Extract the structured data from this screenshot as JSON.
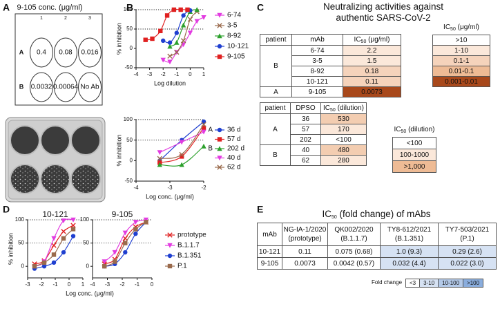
{
  "panel_labels": [
    "A",
    "B",
    "C",
    "D",
    "E"
  ],
  "panel_a": {
    "title": "9-105 conc. (μg/ml)",
    "columns": [
      "1",
      "2",
      "3"
    ],
    "rows": [
      {
        "label": "A",
        "wells": [
          "0.4",
          "0.08",
          "0.016"
        ]
      },
      {
        "label": "B",
        "wells": [
          "0.0032",
          "0.00064",
          "No Ab"
        ]
      }
    ]
  },
  "chart_data": [
    {
      "type": "line",
      "x_label": "Log dilution",
      "y_label": "% inhibition",
      "xlim": [
        -4,
        1
      ],
      "xticks": [
        -4,
        -3,
        -2,
        -1,
        0,
        1
      ],
      "ylim": [
        -50,
        100
      ],
      "yticks": [
        -50,
        0,
        50,
        100
      ],
      "hlines": [
        50,
        100
      ],
      "legend": "right",
      "series": [
        {
          "name": "6-74",
          "color": "#e23be0",
          "marker": "tri-down",
          "x": [
            -2,
            -1.5,
            -1,
            -0.5,
            0,
            0.5,
            1
          ],
          "values": [
            -30,
            -35,
            -10,
            10,
            40,
            70,
            80
          ]
        },
        {
          "name": "3-5",
          "color": "#9a6a4c",
          "marker": "x",
          "x": [
            -1.5,
            -1,
            -0.5,
            0,
            0.5
          ],
          "values": [
            -20,
            -10,
            20,
            75,
            95
          ]
        },
        {
          "name": "8-92",
          "color": "#2ca02c",
          "marker": "triangle",
          "x": [
            -1.5,
            -1,
            -0.5,
            0,
            0.5
          ],
          "values": [
            5,
            15,
            60,
            95,
            100
          ]
        },
        {
          "name": "10-121",
          "color": "#1f3fd0",
          "marker": "circle",
          "x": [
            -2,
            -1.5,
            -1,
            -0.5,
            0
          ],
          "values": [
            20,
            15,
            40,
            85,
            98
          ]
        },
        {
          "name": "9-105",
          "color": "#e02020",
          "marker": "square",
          "x": [
            -3.3,
            -2.8,
            -2.2,
            -1.7,
            -1.2,
            -0.7,
            -0.2
          ],
          "values": [
            22,
            25,
            45,
            85,
            100,
            100,
            100
          ]
        }
      ]
    },
    {
      "type": "line",
      "x_label": "Log conc. (μg/ml)",
      "y_label": "% inhibition",
      "xlim": [
        -4,
        -2
      ],
      "xticks": [
        -4,
        -3,
        -2
      ],
      "ylim": [
        -50,
        100
      ],
      "yticks": [
        -50,
        0,
        50,
        100
      ],
      "hlines": [
        50,
        100
      ],
      "legend": "right",
      "series": [
        {
          "name": "36 d",
          "group": "A",
          "color": "#1f3fd0",
          "marker": "circle",
          "x": [
            -3.3,
            -2.65,
            -2
          ],
          "values": [
            0,
            50,
            95
          ]
        },
        {
          "name": "57 d",
          "color": "#e02020",
          "marker": "square",
          "x": [
            -3.3,
            -2.65,
            -2
          ],
          "values": [
            -5,
            10,
            80
          ]
        },
        {
          "name": "202 d",
          "group": "B",
          "color": "#2ca02c",
          "marker": "triangle",
          "x": [
            -3.3,
            -2.65,
            -2
          ],
          "values": [
            -10,
            -10,
            35
          ]
        },
        {
          "name": "40 d",
          "color": "#e23be0",
          "marker": "tri-down",
          "x": [
            -3.3,
            -2.65,
            -2
          ],
          "values": [
            20,
            45,
            70
          ]
        },
        {
          "name": "62 d",
          "color": "#9a6a4c",
          "marker": "x",
          "x": [
            -3.3,
            -2.65,
            -2
          ],
          "values": [
            5,
            15,
            88
          ]
        }
      ]
    },
    {
      "type": "line",
      "title": "10-121",
      "y_label": "% inhibition",
      "xlim": [
        -3,
        1
      ],
      "xticks": [
        -3,
        -2,
        -1,
        0,
        1
      ],
      "ylim": [
        -25,
        100
      ],
      "yticks": [
        0,
        50,
        100
      ],
      "hlines": [
        50,
        100
      ],
      "series": [
        {
          "color": "#e02020",
          "marker": "x",
          "x": [
            -2.5,
            -1.8,
            -1.1,
            -0.4,
            0.3
          ],
          "values": [
            5,
            12,
            45,
            75,
            88
          ]
        },
        {
          "color": "#e23be0",
          "marker": "tri-down",
          "x": [
            -2.5,
            -1.8,
            -1.1,
            -0.4,
            0.3
          ],
          "values": [
            0,
            10,
            60,
            98,
            100
          ]
        },
        {
          "color": "#1f3fd0",
          "marker": "circle",
          "x": [
            -2.5,
            -1.8,
            -1.1,
            -0.4,
            0.3
          ],
          "values": [
            -5,
            0,
            8,
            30,
            65
          ]
        },
        {
          "color": "#9a6a4c",
          "marker": "square",
          "x": [
            -2.5,
            -1.8,
            -1.1,
            -0.4,
            0.3
          ],
          "values": [
            0,
            8,
            25,
            60,
            80
          ]
        }
      ]
    },
    {
      "type": "line",
      "title": "9-105",
      "x_label": "Log conc. (μg/ml)",
      "xlim": [
        -4,
        0
      ],
      "xticks": [
        -4,
        -3,
        -2,
        -1,
        0
      ],
      "ylim": [
        -25,
        100
      ],
      "yticks": [
        0,
        50,
        100
      ],
      "hlines": [
        50,
        100
      ],
      "legend": "right",
      "series": [
        {
          "name": "prototype",
          "color": "#e02020",
          "marker": "x",
          "x": [
            -3.2,
            -2.5,
            -1.8,
            -1.1,
            -0.4
          ],
          "values": [
            5,
            15,
            60,
            85,
            95
          ]
        },
        {
          "name": "B.1.1.7",
          "color": "#e23be0",
          "marker": "tri-down",
          "x": [
            -3.2,
            -2.5,
            -1.8,
            -1.1,
            -0.4
          ],
          "values": [
            10,
            30,
            72,
            95,
            100
          ]
        },
        {
          "name": "B.1.351",
          "color": "#1f3fd0",
          "marker": "circle",
          "x": [
            -3.2,
            -2.5,
            -1.8,
            -1.1,
            -0.4
          ],
          "values": [
            0,
            5,
            30,
            70,
            95
          ]
        },
        {
          "name": "P.1",
          "color": "#9a6a4c",
          "marker": "square",
          "x": [
            -3.2,
            -2.5,
            -1.8,
            -1.1,
            -0.4
          ],
          "values": [
            0,
            10,
            50,
            80,
            95
          ]
        }
      ]
    }
  ],
  "panel_c": {
    "title": [
      "Neutralizing activities against",
      "authentic SARS-CoV-2"
    ],
    "table1": {
      "headers": [
        "patient",
        "mAb",
        [
          "IC",
          "50",
          " (μg/ml)"
        ]
      ],
      "groups": [
        {
          "patient": "B",
          "rows": [
            {
              "cells": [
                "6-74",
                "2.2"
              ],
              "color": "#fbe8da"
            },
            {
              "cells": [
                "3-5",
                "1.5"
              ],
              "color": "#fbe8da"
            },
            {
              "cells": [
                "8-92",
                "0.18"
              ],
              "color": "#f5d3bb"
            },
            {
              "cells": [
                "10-121",
                "0.11"
              ],
              "color": "#f5d3bb"
            }
          ]
        },
        {
          "patient": "A",
          "rows": [
            {
              "cells": [
                "9-105",
                "0.0073"
              ],
              "color": "#a8481b"
            }
          ]
        }
      ]
    },
    "legend1": {
      "header": [
        "IC",
        "50",
        " (μg/ml)"
      ],
      "items": [
        {
          "label": ">10",
          "color": "#ffffff"
        },
        {
          "label": "1-10",
          "color": "#fbe8da"
        },
        {
          "label": "0.1-1",
          "color": "#f5d3bb"
        },
        {
          "label": "0.01-0.1",
          "color": "#eebb95"
        },
        {
          "label": "0.001-0.01",
          "color": "#a8481b"
        }
      ]
    },
    "table2": {
      "headers": [
        "patient",
        "DPSO",
        [
          "IC",
          "50",
          " (dilution)"
        ]
      ],
      "groups": [
        {
          "patient": "A",
          "rows": [
            {
              "cells": [
                "36",
                "530"
              ],
              "color": "#f3cdb1"
            },
            {
              "cells": [
                "57",
                "170"
              ],
              "color": "#fbe8da"
            },
            {
              "cells": [
                "202",
                "<100"
              ],
              "color": "#ffffff"
            }
          ]
        },
        {
          "patient": "B",
          "rows": [
            {
              "cells": [
                "40",
                "480"
              ],
              "color": "#f3cdb1"
            },
            {
              "cells": [
                "62",
                "280"
              ],
              "color": "#fbe8da"
            }
          ]
        }
      ]
    },
    "legend2": {
      "header": [
        "IC",
        "50",
        " (dilution)"
      ],
      "items": [
        {
          "label": "<100",
          "color": "#ffffff"
        },
        {
          "label": "100-1000",
          "color": "#fbe8da"
        },
        {
          "label": ">1,000",
          "color": "#eebb95"
        }
      ]
    }
  },
  "panel_e": {
    "title": [
      "IC",
      "50",
      " (fold change) of mAbs"
    ],
    "headers": [
      [
        "mAb"
      ],
      [
        "NG-IA-1/2020",
        "(prototype)"
      ],
      [
        "QK002/2020",
        "(B.1.1.7)"
      ],
      [
        "TY8-612/2021",
        "(B.1.351)"
      ],
      [
        "TY7-503/2021",
        "(P.1)"
      ]
    ],
    "rows": [
      {
        "cells": [
          "10-121",
          "0.11",
          "0.075 (0.68)",
          "1.0 (9.3)",
          "0.29 (2.6)"
        ],
        "colors": [
          "#ffffff",
          "#ffffff",
          "#ffffff",
          "#d6e2f3",
          "#d6e2f3"
        ]
      },
      {
        "cells": [
          "9-105",
          "0.0073",
          "0.0042 (0.57)",
          "0.032 (4.4)",
          "0.022 (3.0)"
        ],
        "colors": [
          "#ffffff",
          "#ffffff",
          "#ffffff",
          "#d6e2f3",
          "#d6e2f3"
        ]
      }
    ],
    "legend": {
      "label": "Fold change",
      "items": [
        {
          "label": "<3",
          "color": "#ffffff"
        },
        {
          "label": "3-10",
          "color": "#d6e2f3"
        },
        {
          "label": "10-100",
          "color": "#b3c9e8"
        },
        {
          "label": ">100",
          "color": "#8aaddd"
        }
      ]
    }
  }
}
